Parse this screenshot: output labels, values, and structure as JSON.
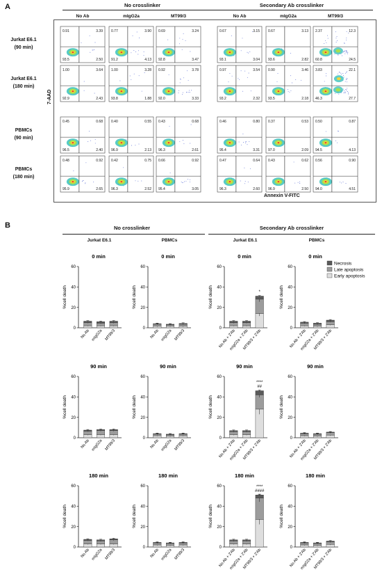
{
  "panel_a": {
    "label": "A",
    "group_titles": [
      "No crosslinker",
      "Secondary Ab crosslinker"
    ],
    "column_titles": [
      "No Ab",
      "mIgG2a",
      "MT99/3",
      "No Ab",
      "mIgG2a",
      "MT99/3"
    ],
    "row_labels": [
      [
        "Jurkat E6.1",
        "(90 min)"
      ],
      [
        "Jurkat E6.1",
        "(180 min)"
      ],
      [
        "PBMCs",
        "(90 min)"
      ],
      [
        "PBMCs",
        "(180 min)"
      ]
    ],
    "y_axis_label": "7-AAD",
    "x_axis_label": "Annexin V-FITC",
    "quadrant_values": [
      [
        [
          "0.91",
          "3.39",
          "93.5",
          "2.50"
        ],
        [
          "0.77",
          "3.90",
          "91.2",
          "4.13"
        ],
        [
          "0.69",
          "3.24",
          "92.8",
          "3.47"
        ],
        [
          "0.67",
          "3.15",
          "93.1",
          "3.04"
        ],
        [
          "0.67",
          "3.13",
          "93.6",
          "2.82"
        ],
        [
          "2.37",
          "12.3",
          "60.8",
          "24.5"
        ]
      ],
      [
        [
          "1.00",
          "3.64",
          "92.9",
          "2.43"
        ],
        [
          "1.00",
          "3.28",
          "93.8",
          "1.88"
        ],
        [
          "0.92",
          "3.78",
          "92.0",
          "3.33"
        ],
        [
          "0.97",
          "3.54",
          "93.2",
          "2.32"
        ],
        [
          "0.90",
          "3.46",
          "93.5",
          "2.18"
        ],
        [
          "3.83",
          "22.1",
          "46.3",
          "27.7"
        ]
      ],
      [
        [
          "0.45",
          "0.68",
          "96.5",
          "2.40"
        ],
        [
          "0.40",
          "0.55",
          "96.9",
          "2.13"
        ],
        [
          "0.43",
          "0.68",
          "96.3",
          "2.61"
        ],
        [
          "0.46",
          "0.80",
          "95.4",
          "3.31"
        ],
        [
          "0.37",
          "0.53",
          "97.0",
          "2.09"
        ],
        [
          "0.50",
          "0.87",
          "94.5",
          "4.13"
        ]
      ],
      [
        [
          "0.48",
          "0.92",
          "95.9",
          "2.65"
        ],
        [
          "0.42",
          "0.75",
          "96.3",
          "2.52"
        ],
        [
          "0.66",
          "0.92",
          "95.4",
          "3.05"
        ],
        [
          "0.47",
          "0.64",
          "96.3",
          "2.60"
        ],
        [
          "0.43",
          "0.62",
          "96.9",
          "2.50"
        ],
        [
          "0.56",
          "0.90",
          "94.0",
          "4.51"
        ]
      ]
    ]
  },
  "panel_b": {
    "label": "B",
    "group_titles": [
      "No crosslinker",
      "Secondary Ab crosslinker"
    ],
    "column_titles": [
      "Jurkat E6.1",
      "PBMCs",
      "Jurkat E6.1",
      "PBMCs"
    ],
    "legend": [
      "Necrosis",
      "Late apoptosis",
      "Early apoptosis"
    ],
    "colors": {
      "necrosis": "#5a5a5a",
      "late": "#9c9c9c",
      "early": "#dedede"
    }
  },
  "chart_data": [
    {
      "type": "bar",
      "title": "0 min",
      "ylabel": "%cell death",
      "ylim": [
        0,
        60
      ],
      "yticks": [
        0,
        20,
        40,
        60
      ],
      "categories": [
        "No Ab",
        "mIgG2a",
        "MT99/3"
      ],
      "series": [
        {
          "name": "Early apoptosis",
          "values": [
            2,
            2,
            2
          ]
        },
        {
          "name": "Late apoptosis",
          "values": [
            3,
            2.5,
            3
          ]
        },
        {
          "name": "Necrosis",
          "values": [
            1.5,
            1.5,
            1.5
          ]
        }
      ],
      "annotations": [
        "",
        "",
        ""
      ]
    },
    {
      "type": "bar",
      "title": "0 min",
      "ylabel": "%cell death",
      "ylim": [
        0,
        60
      ],
      "yticks": [
        0,
        20,
        40,
        60
      ],
      "categories": [
        "No Ab",
        "mIgG2a",
        "MT99/3"
      ],
      "series": [
        {
          "name": "Early apoptosis",
          "values": [
            1.5,
            1.5,
            1.5
          ]
        },
        {
          "name": "Late apoptosis",
          "values": [
            2,
            1.5,
            2
          ]
        },
        {
          "name": "Necrosis",
          "values": [
            0.5,
            0.5,
            0.8
          ]
        }
      ],
      "annotations": [
        "",
        "",
        ""
      ]
    },
    {
      "type": "bar",
      "title": "0 min",
      "ylabel": "%cell death",
      "ylim": [
        0,
        60
      ],
      "yticks": [
        0,
        20,
        40,
        60
      ],
      "categories": [
        "No Ab + 2'Ab",
        "mIgG2a + 2'Ab",
        "MT99/3 + 2'Ab"
      ],
      "series": [
        {
          "name": "Early apoptosis",
          "values": [
            2,
            2,
            14
          ]
        },
        {
          "name": "Late apoptosis",
          "values": [
            3,
            3,
            14
          ]
        },
        {
          "name": "Necrosis",
          "values": [
            1.5,
            1.5,
            3
          ]
        }
      ],
      "annotations": [
        "",
        "",
        "*"
      ]
    },
    {
      "type": "bar",
      "title": "0 min",
      "ylabel": "%cell death",
      "ylim": [
        0,
        60
      ],
      "yticks": [
        0,
        20,
        40,
        60
      ],
      "categories": [
        "No Ab + 2'Ab",
        "mIgG2a + 2'Ab",
        "MT99/3 + 2'Ab"
      ],
      "series": [
        {
          "name": "Early apoptosis",
          "values": [
            2,
            1.5,
            3
          ]
        },
        {
          "name": "Late apoptosis",
          "values": [
            2.5,
            2,
            3
          ]
        },
        {
          "name": "Necrosis",
          "values": [
            1,
            1,
            1.5
          ]
        }
      ],
      "annotations": [
        "",
        "",
        ""
      ],
      "legend": true
    },
    {
      "type": "bar",
      "title": "90 min",
      "ylabel": "%cell death",
      "ylim": [
        0,
        60
      ],
      "yticks": [
        0,
        20,
        40,
        60
      ],
      "categories": [
        "No Ab",
        "mIgG2a",
        "MT99/3"
      ],
      "series": [
        {
          "name": "Early apoptosis",
          "values": [
            3,
            3,
            3
          ]
        },
        {
          "name": "Late apoptosis",
          "values": [
            3.5,
            4,
            4
          ]
        },
        {
          "name": "Necrosis",
          "values": [
            1,
            1,
            1
          ]
        }
      ],
      "annotations": [
        "",
        "",
        ""
      ]
    },
    {
      "type": "bar",
      "title": "90 min",
      "ylabel": "%cell death",
      "ylim": [
        0,
        60
      ],
      "yticks": [
        0,
        20,
        40,
        60
      ],
      "categories": [
        "No Ab",
        "mIgG2a",
        "MT99/3"
      ],
      "series": [
        {
          "name": "Early apoptosis",
          "values": [
            2,
            1.5,
            2
          ]
        },
        {
          "name": "Late apoptosis",
          "values": [
            1.5,
            1.5,
            1.5
          ]
        },
        {
          "name": "Necrosis",
          "values": [
            0.5,
            0.5,
            0.5
          ]
        }
      ],
      "annotations": [
        "",
        "",
        ""
      ]
    },
    {
      "type": "bar",
      "title": "90 min",
      "ylabel": "%cell death",
      "ylim": [
        0,
        60
      ],
      "yticks": [
        0,
        20,
        40,
        60
      ],
      "categories": [
        "No Ab + 2'Ab",
        "mIgG2a + 2'Ab",
        "MT99/3 + 2'Ab"
      ],
      "series": [
        {
          "name": "Early apoptosis",
          "values": [
            3,
            3,
            28
          ]
        },
        {
          "name": "Late apoptosis",
          "values": [
            3,
            3,
            14
          ]
        },
        {
          "name": "Necrosis",
          "values": [
            1,
            1,
            4
          ]
        }
      ],
      "annotations": [
        "",
        "",
        "****\n##"
      ]
    },
    {
      "type": "bar",
      "title": "90 min",
      "ylabel": "%cell death",
      "ylim": [
        0,
        60
      ],
      "yticks": [
        0,
        20,
        40,
        60
      ],
      "categories": [
        "No Ab + 2'Ab",
        "mIgG2a + 2'Ab",
        "MT99/3 + 2'Ab"
      ],
      "series": [
        {
          "name": "Early apoptosis",
          "values": [
            2,
            1.5,
            2.5
          ]
        },
        {
          "name": "Late apoptosis",
          "values": [
            2,
            2,
            2.5
          ]
        },
        {
          "name": "Necrosis",
          "values": [
            0.5,
            0.5,
            0.5
          ]
        }
      ],
      "annotations": [
        "",
        "",
        ""
      ]
    },
    {
      "type": "bar",
      "title": "180 min",
      "ylabel": "%cell death",
      "ylim": [
        0,
        60
      ],
      "yticks": [
        0,
        20,
        40,
        60
      ],
      "categories": [
        "No Ab",
        "mIgG2a",
        "MT99/3"
      ],
      "series": [
        {
          "name": "Early apoptosis",
          "values": [
            3,
            3,
            3
          ]
        },
        {
          "name": "Late apoptosis",
          "values": [
            3.5,
            3,
            4
          ]
        },
        {
          "name": "Necrosis",
          "values": [
            1,
            1,
            1
          ]
        }
      ],
      "annotations": [
        "",
        "",
        ""
      ]
    },
    {
      "type": "bar",
      "title": "180 min",
      "ylabel": "%cell death",
      "ylim": [
        0,
        60
      ],
      "yticks": [
        0,
        20,
        40,
        60
      ],
      "categories": [
        "No Ab",
        "mIgG2a",
        "MT99/3"
      ],
      "series": [
        {
          "name": "Early apoptosis",
          "values": [
            2,
            1.5,
            2
          ]
        },
        {
          "name": "Late apoptosis",
          "values": [
            2,
            2,
            2
          ]
        },
        {
          "name": "Necrosis",
          "values": [
            0.5,
            0.5,
            0.5
          ]
        }
      ],
      "annotations": [
        "",
        "",
        ""
      ]
    },
    {
      "type": "bar",
      "title": "180 min",
      "ylabel": "%cell death",
      "ylim": [
        0,
        60
      ],
      "yticks": [
        0,
        20,
        40,
        60
      ],
      "categories": [
        "No Ab + 2'Ab",
        "mIgG2a + 2'Ab",
        "MT99/3 + 2'Ab"
      ],
      "series": [
        {
          "name": "Early apoptosis",
          "values": [
            3,
            3,
            27
          ]
        },
        {
          "name": "Late apoptosis",
          "values": [
            3,
            3,
            21
          ]
        },
        {
          "name": "Necrosis",
          "values": [
            1,
            1,
            3
          ]
        }
      ],
      "annotations": [
        "",
        "",
        "****\n####"
      ]
    },
    {
      "type": "bar",
      "title": "180 min",
      "ylabel": "%cell death",
      "ylim": [
        0,
        60
      ],
      "yticks": [
        0,
        20,
        40,
        60
      ],
      "categories": [
        "No Ab + 2'Ab",
        "mIgG2a + 2'Ab",
        "MT99/3 + 2'Ab"
      ],
      "series": [
        {
          "name": "Early apoptosis",
          "values": [
            2,
            1.5,
            2.5
          ]
        },
        {
          "name": "Late apoptosis",
          "values": [
            2,
            2,
            2.5
          ]
        },
        {
          "name": "Necrosis",
          "values": [
            0.5,
            0.5,
            0.8
          ]
        }
      ],
      "annotations": [
        "",
        "",
        ""
      ]
    }
  ]
}
